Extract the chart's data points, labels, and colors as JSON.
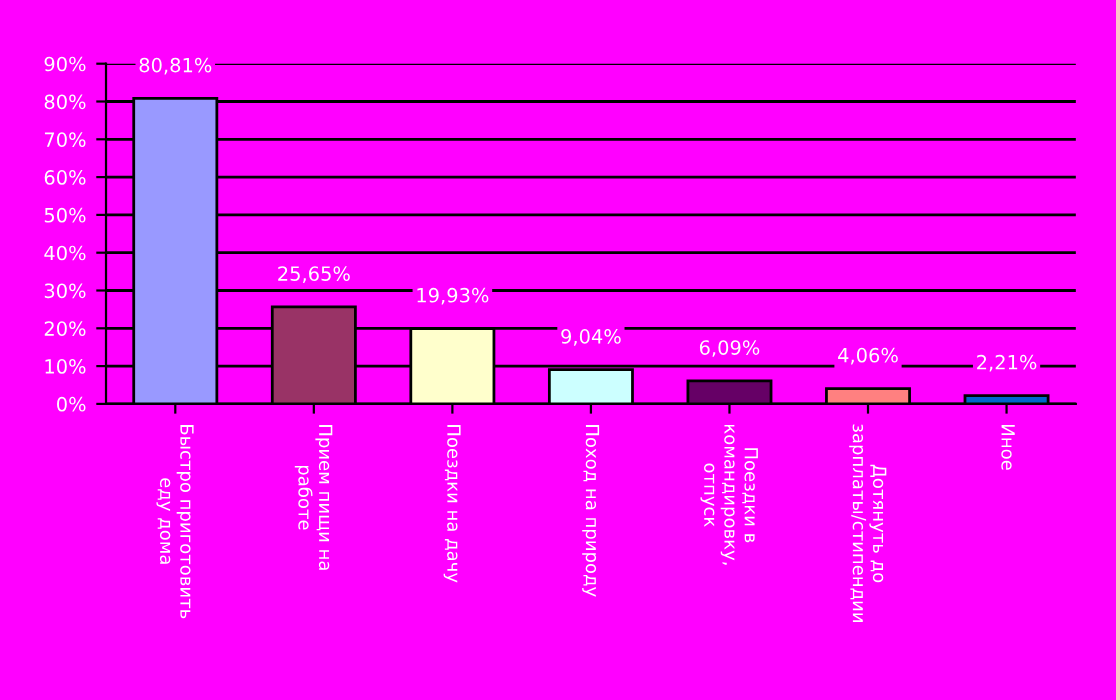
{
  "chart_data": {
    "type": "bar",
    "categories": [
      "Быстро приготовить\nеду дома",
      "Прием пищи на\nработе",
      "Поездки на дачу",
      "Поход на природу",
      "Поездки в\nкомандировку,\nотпуск",
      "Дотянуть до\nзарплаты/стипендии",
      "Иное"
    ],
    "values": [
      80.81,
      25.65,
      19.93,
      9.04,
      6.09,
      4.06,
      2.21
    ],
    "colors": [
      "#9999ff",
      "#993366",
      "#ffffcc",
      "#ccffff",
      "#660066",
      "#ff8080",
      "#0066cc"
    ],
    "value_labels": [
      "80,81%",
      "25,65%",
      "19,93%",
      "9,04%",
      "6,09%",
      "4,06%",
      "2,21%"
    ],
    "ylim": [
      0,
      90
    ],
    "yticks": [
      {
        "value": 0,
        "label": "0%"
      },
      {
        "value": 10,
        "label": "10%"
      },
      {
        "value": 20,
        "label": "20%"
      },
      {
        "value": 30,
        "label": "30%"
      },
      {
        "value": 40,
        "label": "40%"
      },
      {
        "value": 50,
        "label": "50%"
      },
      {
        "value": 60,
        "label": "60%"
      },
      {
        "value": 70,
        "label": "70%"
      },
      {
        "value": 80,
        "label": "80%"
      },
      {
        "value": 90,
        "label": "90%"
      }
    ],
    "grid": "y",
    "legend": false
  }
}
